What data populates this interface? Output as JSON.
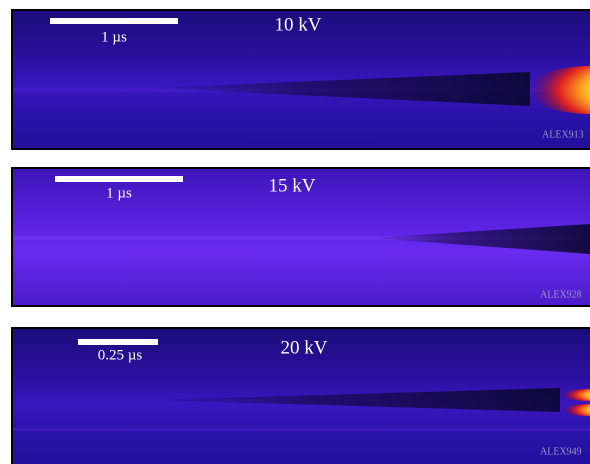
{
  "panels": [
    {
      "scale_bar_label": "1 µs",
      "voltage": "10 kV",
      "image_id": "ALEX913"
    },
    {
      "scale_bar_label": "1 µs",
      "voltage": "15 kV",
      "image_id": "ALEX928"
    },
    {
      "scale_bar_label": "0.25 µs",
      "voltage": "20 kV",
      "image_id": "ALEX949"
    }
  ]
}
